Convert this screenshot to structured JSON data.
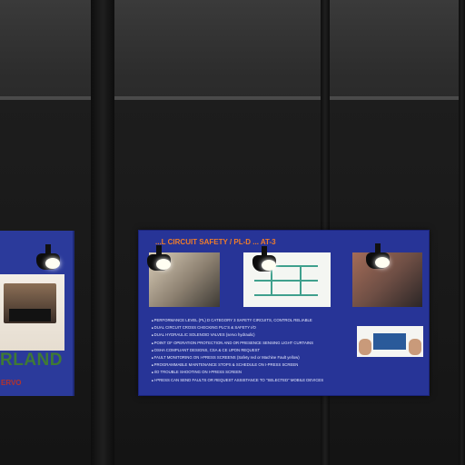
{
  "scene": {
    "banner_main_title": "...L CIRCUIT SAFETY / PL-D ... AT-3",
    "bullets": [
      "PERFORMANCE LEVEL (PL) D CATEGORY 3 SAFETY CIRCUITS, CONTROL RELIABLE",
      "DUAL CIRCUIT CROSS CHECKING PLC'S & SAFETY I/O",
      "DUAL HYDRAULIC SOLENOID VALVES (servo hydraulic)",
      "POINT OF OPERATION PROTECTION AND OR PRESENCE SENSING LIGHT CURTAINS",
      "OSHA COMPLIANT DESIGNS, CSA & CE UPON REQUEST",
      "FAULT MONITORING ON I-PRESS SCREENS (Safety red or Machine Fault yellow)",
      "PROGRAMMABLE MAINTENANCE STOPS & SCHEDULE ON I-PRESS SCREEN",
      "I/O TROUBLE SHOOTING ON I-PRESS SCREEN",
      "I-PRESS CAN SEND FAULTS OR REQUEST ASSISTANCE TO \"SELECTED\" MOBILE DEVICES"
    ],
    "banner_left_brand": "RLAND",
    "banner_left_sub": "ERVO",
    "colors": {
      "banner_blue": "#273497",
      "title_orange": "#f07d2a",
      "brand_green": "#3f7a34",
      "sub_red": "#b4332d"
    }
  }
}
